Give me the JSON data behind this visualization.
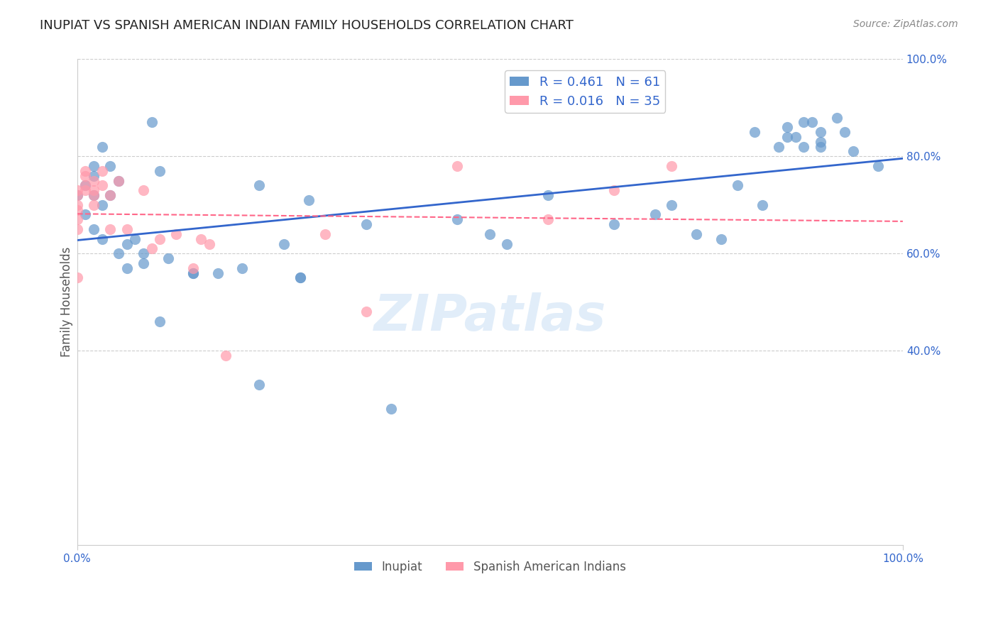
{
  "title": "INUPIAT VS SPANISH AMERICAN INDIAN FAMILY HOUSEHOLDS CORRELATION CHART",
  "source": "Source: ZipAtlas.com",
  "ylabel": "Family Households",
  "ytick_labels_right": [
    "100.0%",
    "80.0%",
    "60.0%",
    "40.0%"
  ],
  "ytick_positions_right": [
    1.0,
    0.8,
    0.6,
    0.4
  ],
  "grid_color": "#cccccc",
  "watermark": "ZIPatlas",
  "legend_label_blue": "R = 0.461   N = 61",
  "legend_label_pink": "R = 0.016   N = 35",
  "bottom_legend_blue": "Inupiat",
  "bottom_legend_pink": "Spanish American Indians",
  "blue_color": "#6699cc",
  "pink_color": "#ff99aa",
  "blue_line_color": "#3366cc",
  "pink_line_color": "#ff6688",
  "inupiat_x": [
    0.0,
    0.01,
    0.01,
    0.02,
    0.02,
    0.02,
    0.02,
    0.03,
    0.03,
    0.03,
    0.04,
    0.04,
    0.05,
    0.05,
    0.06,
    0.06,
    0.07,
    0.08,
    0.08,
    0.09,
    0.1,
    0.1,
    0.11,
    0.14,
    0.14,
    0.17,
    0.2,
    0.22,
    0.22,
    0.25,
    0.27,
    0.27,
    0.28,
    0.35,
    0.38,
    0.46,
    0.5,
    0.52,
    0.57,
    0.65,
    0.7,
    0.72,
    0.75,
    0.78,
    0.8,
    0.82,
    0.83,
    0.85,
    0.86,
    0.86,
    0.87,
    0.88,
    0.88,
    0.89,
    0.9,
    0.9,
    0.9,
    0.92,
    0.93,
    0.94,
    0.97
  ],
  "inupiat_y": [
    0.72,
    0.74,
    0.68,
    0.78,
    0.76,
    0.72,
    0.65,
    0.82,
    0.7,
    0.63,
    0.78,
    0.72,
    0.75,
    0.6,
    0.62,
    0.57,
    0.63,
    0.6,
    0.58,
    0.87,
    0.77,
    0.46,
    0.59,
    0.56,
    0.56,
    0.56,
    0.57,
    0.74,
    0.33,
    0.62,
    0.55,
    0.55,
    0.71,
    0.66,
    0.28,
    0.67,
    0.64,
    0.62,
    0.72,
    0.66,
    0.68,
    0.7,
    0.64,
    0.63,
    0.74,
    0.85,
    0.7,
    0.82,
    0.86,
    0.84,
    0.84,
    0.82,
    0.87,
    0.87,
    0.85,
    0.83,
    0.82,
    0.88,
    0.85,
    0.81,
    0.78
  ],
  "spanish_x": [
    0.0,
    0.0,
    0.0,
    0.0,
    0.0,
    0.0,
    0.0,
    0.01,
    0.01,
    0.01,
    0.01,
    0.02,
    0.02,
    0.02,
    0.02,
    0.03,
    0.03,
    0.04,
    0.04,
    0.05,
    0.06,
    0.08,
    0.09,
    0.1,
    0.12,
    0.14,
    0.15,
    0.16,
    0.18,
    0.3,
    0.35,
    0.46,
    0.57,
    0.65,
    0.72
  ],
  "spanish_y": [
    0.73,
    0.72,
    0.7,
    0.69,
    0.67,
    0.65,
    0.55,
    0.77,
    0.76,
    0.74,
    0.73,
    0.75,
    0.73,
    0.72,
    0.7,
    0.77,
    0.74,
    0.72,
    0.65,
    0.75,
    0.65,
    0.73,
    0.61,
    0.63,
    0.64,
    0.57,
    0.63,
    0.62,
    0.39,
    0.64,
    0.48,
    0.78,
    0.67,
    0.73,
    0.78
  ]
}
